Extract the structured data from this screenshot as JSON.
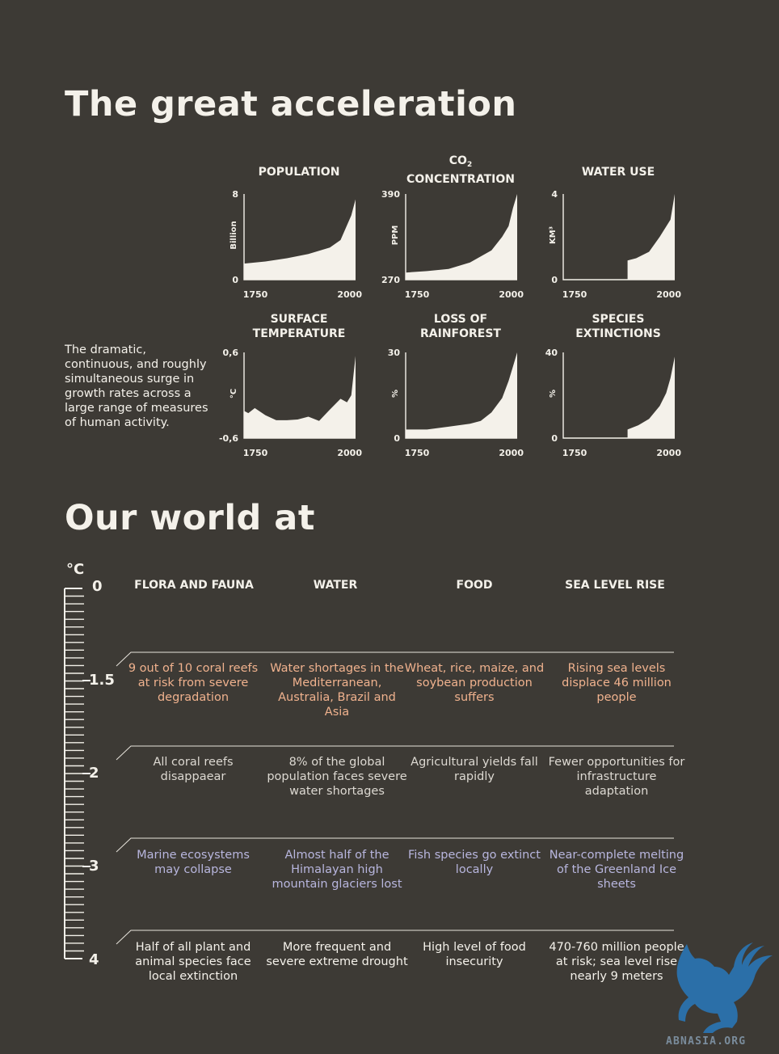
{
  "header": {
    "title": "The great acceleration",
    "description": "The dramatic, continuous, and roughly simultaneous surge in growth rates across a large range of measures of human activity."
  },
  "chart_data": [
    {
      "type": "area",
      "title_line1": "",
      "title_line2": "POPULATION",
      "ylabel": "Billion",
      "ylim": [
        0,
        8
      ],
      "xlim": [
        1750,
        2010
      ],
      "y_ticks": [
        "8",
        "0"
      ],
      "x_ticks": [
        "1750",
        "2000"
      ],
      "x": [
        1750,
        1800,
        1850,
        1900,
        1950,
        1975,
        2000,
        2010
      ],
      "y": [
        1.5,
        1.7,
        2.0,
        2.4,
        3.0,
        3.7,
        6.0,
        7.5
      ]
    },
    {
      "type": "area",
      "title_line1": "CO",
      "title_sub": "2",
      "title_line2": "CONCENTRATION",
      "ylabel": "PPM",
      "ylim": [
        270,
        390
      ],
      "xlim": [
        1750,
        2010
      ],
      "y_ticks": [
        "390",
        "270"
      ],
      "x_ticks": [
        "1750",
        "2000"
      ],
      "x": [
        1750,
        1800,
        1850,
        1900,
        1950,
        1975,
        1990,
        2000,
        2010
      ],
      "y": [
        280,
        282,
        285,
        294,
        311,
        330,
        345,
        370,
        390
      ]
    },
    {
      "type": "area",
      "title_line1": "",
      "title_line2": "WATER USE",
      "ylabel": "KM³",
      "ylim": [
        0,
        4
      ],
      "xlim": [
        1750,
        2010
      ],
      "y_ticks": [
        "4",
        "0"
      ],
      "x_ticks": [
        "1750",
        "2000"
      ],
      "x": [
        1750,
        1900,
        1900,
        1920,
        1950,
        1975,
        2000,
        2010
      ],
      "y": [
        0,
        0,
        0.9,
        1.0,
        1.3,
        2.0,
        2.8,
        4.0
      ]
    },
    {
      "type": "area",
      "title_line1": "SURFACE",
      "title_line2": "TEMPERATURE",
      "ylabel": "°C",
      "ylim": [
        -0.6,
        0.6
      ],
      "xlim": [
        1750,
        2010
      ],
      "y_ticks": [
        "0,6",
        "-0,6"
      ],
      "x_ticks": [
        "1750",
        "2000"
      ],
      "x": [
        1750,
        1760,
        1775,
        1800,
        1825,
        1850,
        1875,
        1900,
        1925,
        1950,
        1975,
        1990,
        2000,
        2010
      ],
      "y": [
        -0.22,
        -0.25,
        -0.18,
        -0.28,
        -0.35,
        -0.35,
        -0.34,
        -0.3,
        -0.36,
        -0.2,
        -0.05,
        -0.1,
        0.0,
        0.55
      ]
    },
    {
      "type": "area",
      "title_line1": "LOSS OF",
      "title_line2": "RAINFOREST",
      "ylabel": "%",
      "ylim": [
        0,
        30
      ],
      "xlim": [
        1750,
        2010
      ],
      "y_ticks": [
        "30",
        "0"
      ],
      "x_ticks": [
        "1750",
        "2000"
      ],
      "x": [
        1750,
        1800,
        1850,
        1900,
        1925,
        1950,
        1975,
        1990,
        2000,
        2010
      ],
      "y": [
        3,
        3,
        4,
        5,
        6,
        9,
        14,
        20,
        25,
        30
      ]
    },
    {
      "type": "area",
      "title_line1": "SPECIES",
      "title_line2": "EXTINCTIONS",
      "ylabel": "%",
      "ylim": [
        0,
        40
      ],
      "xlim": [
        1750,
        2010
      ],
      "y_ticks": [
        "40",
        "0"
      ],
      "x_ticks": [
        "1750",
        "2000"
      ],
      "x": [
        1750,
        1900,
        1900,
        1925,
        1950,
        1975,
        1990,
        2000,
        2010
      ],
      "y": [
        0,
        0,
        4,
        6,
        9,
        15,
        21,
        28,
        38
      ]
    }
  ],
  "world": {
    "title": "Our world at",
    "scale_unit": "°C",
    "scale_labels": [
      "0",
      "1.5",
      "2",
      "3",
      "4"
    ],
    "columns": [
      "FLORA AND FAUNA",
      "WATER",
      "FOOD",
      "SEA LEVEL RISE"
    ],
    "rows": [
      {
        "cells": [
          "9 out of 10 coral reefs at risk from severe degradation",
          "Water shortages in the Mediterranean, Australia, Brazil and Asia",
          "Wheat, rice, maize, and soybean production suffers",
          "Rising sea levels displace 46 million people"
        ]
      },
      {
        "cells": [
          "All coral reefs disappaear",
          "8% of the global population faces severe water shortages",
          "Agricultural yields fall rapidly",
          "Fewer opportunities for infrastructure adaptation"
        ]
      },
      {
        "cells": [
          "Marine ecosystems may collapse",
          "Almost half of the Himalayan high mountain glaciers lost",
          "Fish species go extinct locally",
          "Near-complete melting of the Greenland Ice sheets"
        ]
      },
      {
        "cells": [
          "Half of all plant and animal species face local extinction",
          "More frequent and severe extreme drought",
          "High level of food insecurity",
          "470-760 million people at risk; sea level rise nearly 9 meters"
        ]
      }
    ]
  },
  "watermark": {
    "text": "ABNASIA.ORG"
  },
  "colors": {
    "background": "#3d3a35",
    "area_fill": "#f4f1ea",
    "row_orange": "#f0b28e",
    "row_grey": "#ddd9d2",
    "row_purple": "#b8b6de",
    "divider": "#e8e4dc",
    "watermark_blue": "#2b6fa8"
  }
}
